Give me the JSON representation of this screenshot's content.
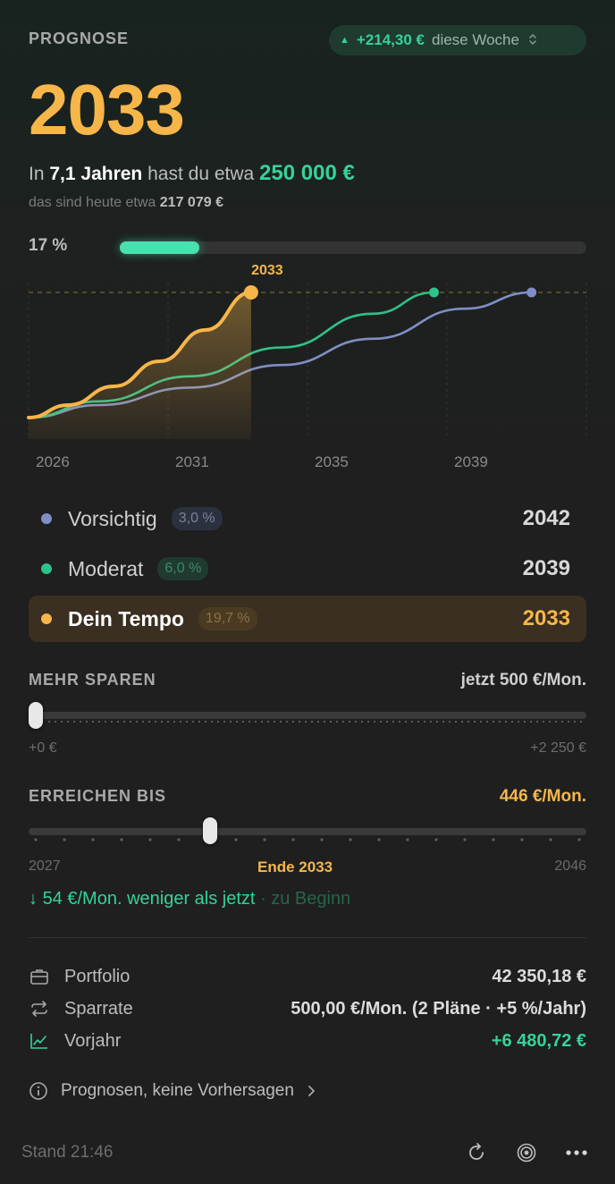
{
  "header": {
    "section_label": "PROGNOSE",
    "week_change": "+214,30 €",
    "week_label": "diese Woche",
    "target_year": "2033"
  },
  "summary": {
    "prefix": "In",
    "years": "7,1 Jahren",
    "middle": "hast du etwa",
    "goal_amount": "250 000 €",
    "today_prefix": "das sind heute etwa",
    "today_value": "217 079 €"
  },
  "progress": {
    "label": "17 %",
    "value": 0.17
  },
  "chart_data": {
    "type": "line",
    "x_ticks": [
      "2026",
      "2031",
      "2035",
      "2039"
    ],
    "xlim": [
      2025.7,
      2044
    ],
    "target_line_label": "2033",
    "series": [
      {
        "name": "Vorsichtig",
        "color": "#7f8fc6",
        "x": [
          2025.7,
          2028,
          2031,
          2034,
          2037,
          2040,
          2042.2
        ],
        "y": [
          0,
          0.1,
          0.24,
          0.42,
          0.63,
          0.87,
          1.0
        ]
      },
      {
        "name": "Moderat",
        "color": "#2ec28a",
        "x": [
          2025.7,
          2028,
          2031,
          2034,
          2037,
          2039
        ],
        "y": [
          0,
          0.13,
          0.33,
          0.56,
          0.83,
          1.0
        ]
      },
      {
        "name": "Dein Tempo",
        "color": "#f7b64a",
        "x": [
          2025.7,
          2027,
          2028.5,
          2030,
          2031.5,
          2033
        ],
        "y": [
          0,
          0.1,
          0.25,
          0.45,
          0.7,
          1.0
        ]
      }
    ]
  },
  "scenarios": [
    {
      "name": "Vorsichtig",
      "rate": "3,0 %",
      "year": "2042",
      "color": "#7f8fc6"
    },
    {
      "name": "Moderat",
      "rate": "6,0 %",
      "year": "2039",
      "color": "#2ec28a"
    },
    {
      "name": "Dein Tempo",
      "rate": "19,7 %",
      "year": "2033",
      "color": "#f7b64a"
    }
  ],
  "mehr_sparen": {
    "label": "MEHR SPAREN",
    "current": "jetzt 500 €/Mon.",
    "min_label": "+0 €",
    "max_label": "+2 250 €",
    "value": 0
  },
  "erreichen_bis": {
    "label": "ERREICHEN BIS",
    "monthly": "446 €/Mon.",
    "min_label": "2027",
    "selected_label": "Ende 2033",
    "max_label": "2046",
    "value": 0.32
  },
  "hint": {
    "arrow": "↓",
    "text": "54 €/Mon. weniger als jetzt",
    "suffix": "· zu Beginn"
  },
  "details": {
    "portfolio_label": "Portfolio",
    "portfolio_value": "42 350,18 €",
    "sparrate_label": "Sparrate",
    "sparrate_value": "500,00 €/Mon.  (2 Pläne · +5 %/Jahr)",
    "vorjahr_label": "Vorjahr",
    "vorjahr_value": "+6 480,72 €"
  },
  "disclaimer": "Prognosen, keine Vorhersagen",
  "footer": {
    "stand": "Stand 21:46"
  },
  "icons": [
    "briefcase-icon",
    "repeat-icon",
    "chart-line-icon",
    "info-icon",
    "chevron-right-icon",
    "refresh-icon",
    "target-icon",
    "more-icon"
  ]
}
